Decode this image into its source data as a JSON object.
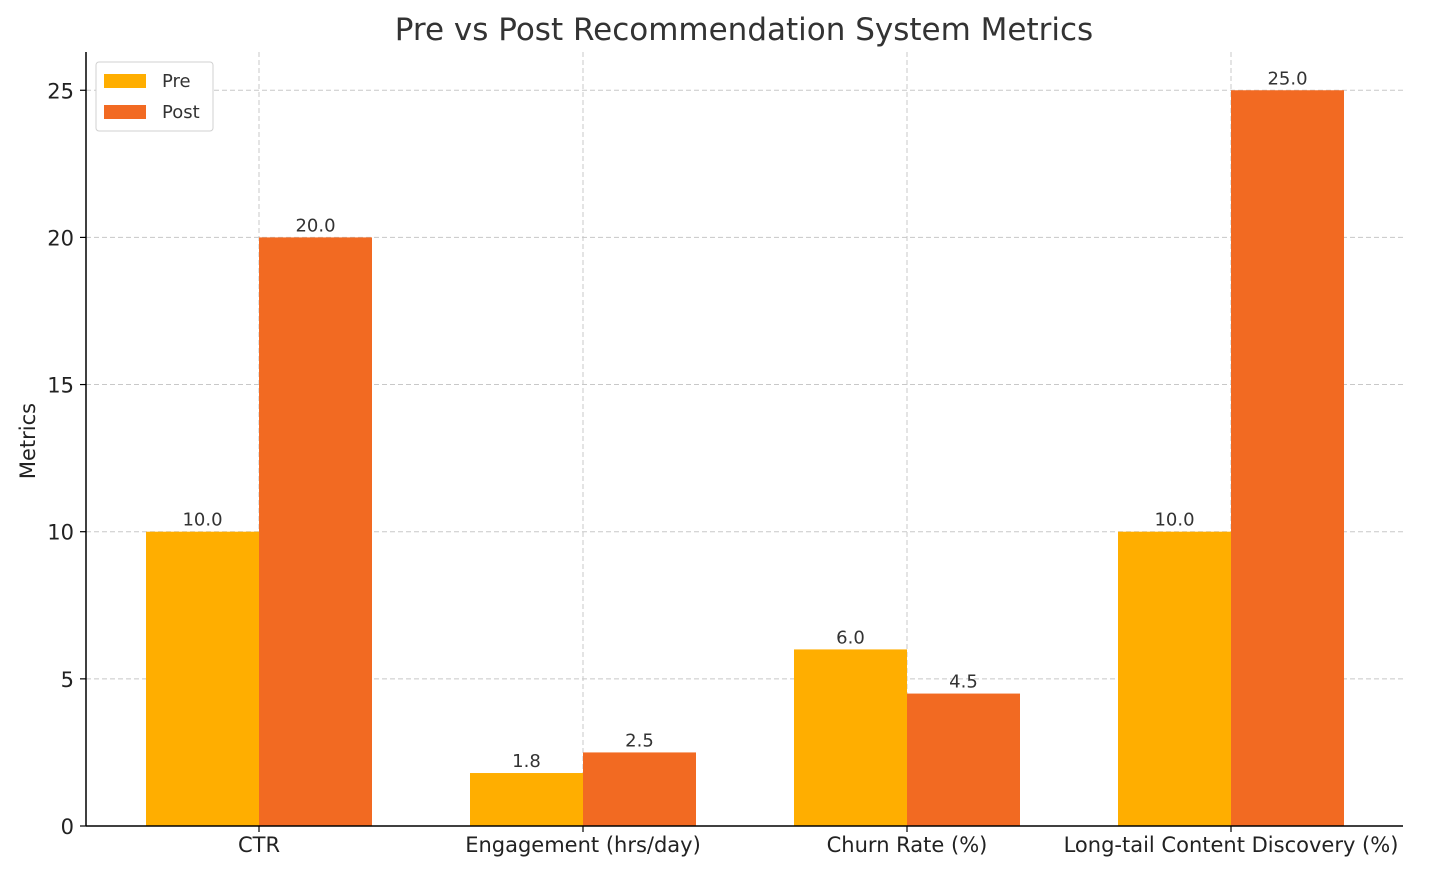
{
  "chart_data": {
    "type": "bar",
    "title": "Pre vs Post Recommendation System Metrics",
    "xlabel": "",
    "ylabel": "Metrics",
    "categories": [
      "CTR",
      "Engagement (hrs/day)",
      "Churn Rate (%)",
      "Long-tail Content Discovery (%)"
    ],
    "series": [
      {
        "name": "Pre",
        "color": "#FFAE00",
        "values": [
          10.0,
          1.8,
          6.0,
          10.0
        ],
        "labels": [
          "10.0",
          "1.8",
          "6.0",
          "10.0"
        ]
      },
      {
        "name": "Post",
        "color": "#F26A22",
        "values": [
          20.0,
          2.5,
          4.5,
          25.0
        ],
        "labels": [
          "20.0",
          "2.5",
          "4.5",
          "25.0"
        ]
      }
    ],
    "ylim": [
      0,
      26.3
    ],
    "yticks": [
      0,
      5,
      10,
      15,
      20,
      25
    ],
    "ytick_labels": [
      "0",
      "5",
      "10",
      "15",
      "20",
      "25"
    ],
    "grid": true,
    "legend_position": "top-left"
  }
}
